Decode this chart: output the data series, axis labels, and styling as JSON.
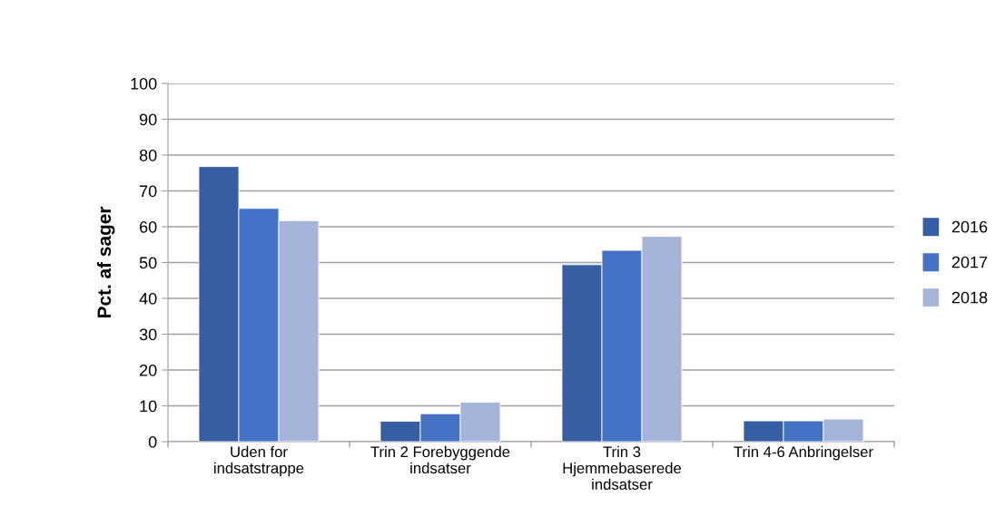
{
  "chart_data": {
    "type": "bar",
    "ylabel": "Pct. af sager",
    "categories": [
      "Uden for\nindsatstrappe",
      "Trin 2 Forebyggende\nindsatser",
      "Trin 3\nHjemmebaserede\nindsatser",
      "Trin 4-6 Anbringelser"
    ],
    "series": [
      {
        "name": "2016",
        "color": "#365fa3",
        "values": [
          76.8,
          5.7,
          49.4,
          5.8
        ]
      },
      {
        "name": "2017",
        "color": "#4472c4",
        "values": [
          65.1,
          7.8,
          53.4,
          5.8
        ]
      },
      {
        "name": "2018",
        "color": "#a6b4da",
        "values": [
          61.7,
          11.0,
          57.3,
          6.3
        ]
      }
    ],
    "ylim": [
      0,
      100
    ],
    "yticks": [
      0,
      10,
      20,
      30,
      40,
      50,
      60,
      70,
      80,
      90,
      100
    ],
    "grid": "y",
    "legend": "right"
  }
}
